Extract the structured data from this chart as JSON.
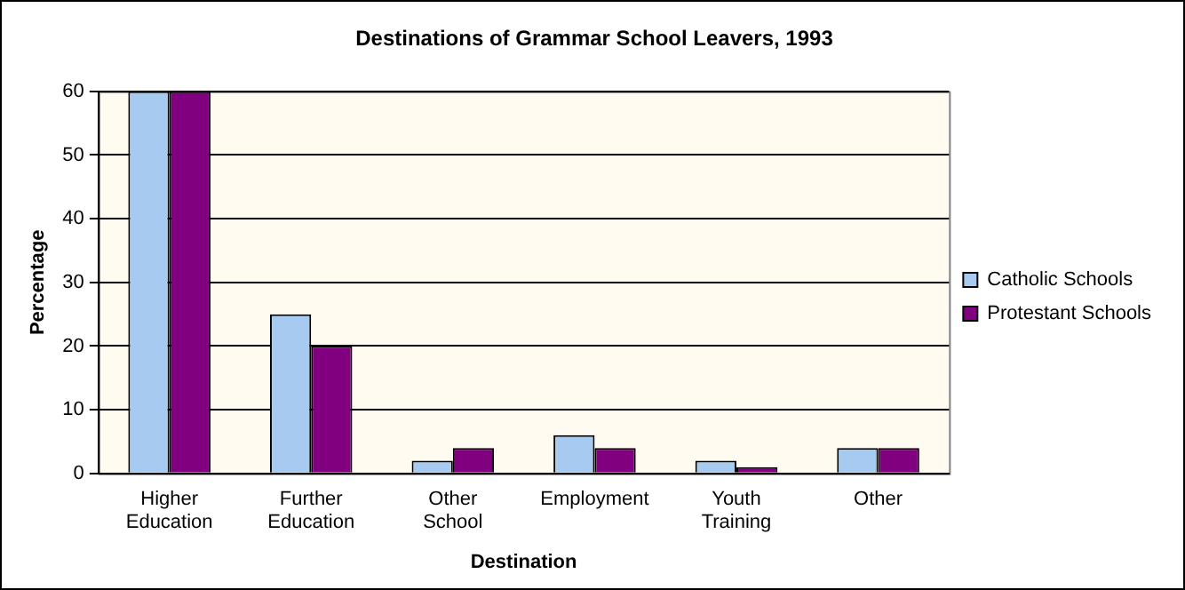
{
  "chart_data": {
    "type": "bar",
    "title": "Destinations of Grammar School Leavers, 1993",
    "xlabel": "Destination",
    "ylabel": "Percentage",
    "categories": [
      "Higher Education",
      "Further Education",
      "Other School",
      "Employment",
      "Youth Training",
      "Other"
    ],
    "series": [
      {
        "name": "Catholic Schools",
        "color": "#a6caf0",
        "values": [
          60,
          25,
          2,
          6,
          2,
          4
        ]
      },
      {
        "name": "Protestant Schools",
        "color": "#800080",
        "values": [
          60,
          20,
          4,
          4,
          1,
          4
        ]
      }
    ],
    "ylim": [
      0,
      60
    ],
    "yticks": [
      0,
      10,
      20,
      30,
      40,
      50,
      60
    ],
    "grid": "y",
    "legend": "right"
  }
}
